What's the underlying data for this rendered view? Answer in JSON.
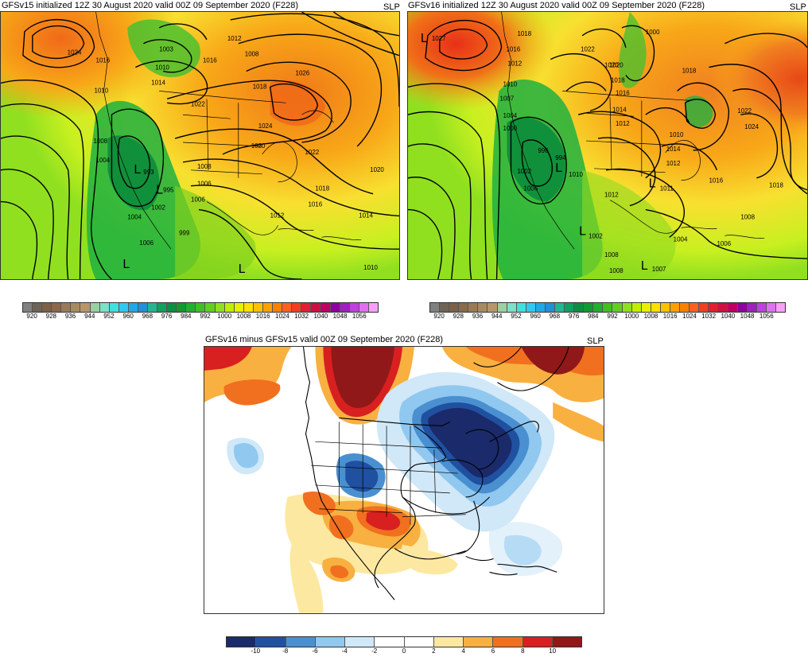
{
  "panels": {
    "top_left": {
      "title": "GFSv15 initialized 12Z 30 August 2020 valid 00Z 09 September 2020 (F228)",
      "var": "SLP",
      "contour_labels": [
        "1024",
        "1012",
        "1008",
        "1003",
        "1010",
        "1016",
        "1018",
        "1014",
        "1016",
        "1026",
        "1022",
        "1024",
        "1008",
        "1004",
        "1010",
        "993",
        "995",
        "999",
        "1002",
        "1006",
        "1004",
        "1006",
        "1020",
        "1022",
        "1018",
        "1016",
        "1012",
        "1014",
        "1010",
        "1006",
        "1020",
        "1008"
      ],
      "low_markers": [
        "L",
        "L",
        "L",
        "L"
      ],
      "low_values": [
        "993",
        "995",
        "1006",
        "1006"
      ]
    },
    "top_right": {
      "title": "GFSv16 initialized 12Z 30 August 2020 valid 00Z 09 September 2020 (F228)",
      "var": "SLP",
      "contour_labels": [
        "1027",
        "1018",
        "1016",
        "1012",
        "1010",
        "1007",
        "1004",
        "1000",
        "996",
        "994",
        "1002",
        "1006",
        "1022",
        "1020",
        "1018",
        "1016",
        "1014",
        "1012",
        "1010",
        "1012",
        "1011",
        "1014",
        "1012",
        "1010",
        "1008",
        "1008",
        "1006",
        "1004",
        "1002",
        "1000",
        "1007",
        "1008",
        "1018",
        "1024",
        "1022",
        "1016",
        "1018",
        "1020"
      ],
      "low_markers": [
        "L",
        "L",
        "L",
        "L",
        "L"
      ],
      "low_values": [
        "1027",
        "1011"
      ]
    },
    "bottom": {
      "title": "GFSv16 minus GFSv15 valid 00Z 09 September 2020 (F228)",
      "var": "SLP"
    }
  },
  "colorbar_slp": {
    "colors": [
      "#808080",
      "#6e6355",
      "#7c6048",
      "#8a6a4a",
      "#9a7a55",
      "#a88a60",
      "#b8966a",
      "#9bd0a0",
      "#7de0c8",
      "#40e0e0",
      "#30c8f0",
      "#20a8e8",
      "#2090d8",
      "#20b890",
      "#10a060",
      "#0a9040",
      "#109a30",
      "#20b030",
      "#40c020",
      "#60d020",
      "#90e020",
      "#c0f000",
      "#e8f000",
      "#ffe000",
      "#ffc000",
      "#ffa000",
      "#ff8000",
      "#ff6020",
      "#f04020",
      "#e02030",
      "#d01040",
      "#c00060",
      "#9000a0",
      "#a020c0",
      "#c040e0",
      "#e070f0",
      "#f8a0f8"
    ],
    "labels": [
      "920",
      "928",
      "936",
      "944",
      "952",
      "960",
      "968",
      "976",
      "984",
      "992",
      "1000",
      "1008",
      "1016",
      "1024",
      "1032",
      "1040",
      "1048",
      "1056"
    ]
  },
  "colorbar_diff": {
    "colors": [
      "#1a2a6a",
      "#2050a0",
      "#4a90d0",
      "#90c8f0",
      "#d0e8f8",
      "#ffffff",
      "#ffffff",
      "#fce8a0",
      "#f8b040",
      "#f07020",
      "#d82020",
      "#901818"
    ],
    "labels": [
      "-10",
      "-8",
      "-6",
      "-4",
      "-2",
      "0",
      "2",
      "4",
      "6",
      "8",
      "10"
    ]
  }
}
